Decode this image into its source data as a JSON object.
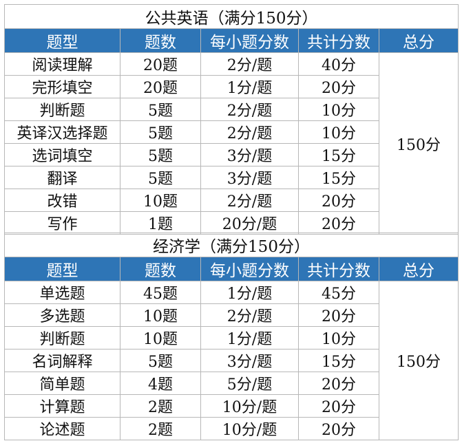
{
  "header_color": "#2e75b6",
  "sections": [
    {
      "title": "公共英语（满分150分）",
      "columns": [
        "题型",
        "题数",
        "每小题分数",
        "共计分数",
        "总分"
      ],
      "total": "150分",
      "rows": [
        [
          "阅读理解",
          "20题",
          "2分/题",
          "40分"
        ],
        [
          "完形填空",
          "20题",
          "1分/题",
          "20分"
        ],
        [
          "判断题",
          "5题",
          "2分/题",
          "10分"
        ],
        [
          "英译汉选择题",
          "5题",
          "2分/题",
          "10分"
        ],
        [
          "选词填空",
          "5题",
          "3分/题",
          "15分"
        ],
        [
          "翻译",
          "5题",
          "3分/题",
          "15分"
        ],
        [
          "改错",
          "10题",
          "2分/题",
          "20分"
        ],
        [
          "写作",
          "1题",
          "20分/题",
          "20分"
        ]
      ]
    },
    {
      "title": "经济学（满分150分）",
      "columns": [
        "题型",
        "题数",
        "每小题分数",
        "共计分数",
        "总分"
      ],
      "total": "150分",
      "rows": [
        [
          "单选题",
          "45题",
          "1分/题",
          "45分"
        ],
        [
          "多选题",
          "10题",
          "2分/题",
          "20分"
        ],
        [
          "判断题",
          "10题",
          "1分/题",
          "10分"
        ],
        [
          "名词解释",
          "5题",
          "3分/题",
          "15分"
        ],
        [
          "简单题",
          "4题",
          "5分/题",
          "20分"
        ],
        [
          "计算题",
          "2题",
          "10分/题",
          "20分"
        ],
        [
          "论述题",
          "2题",
          "10分/题",
          "20分"
        ]
      ]
    }
  ]
}
